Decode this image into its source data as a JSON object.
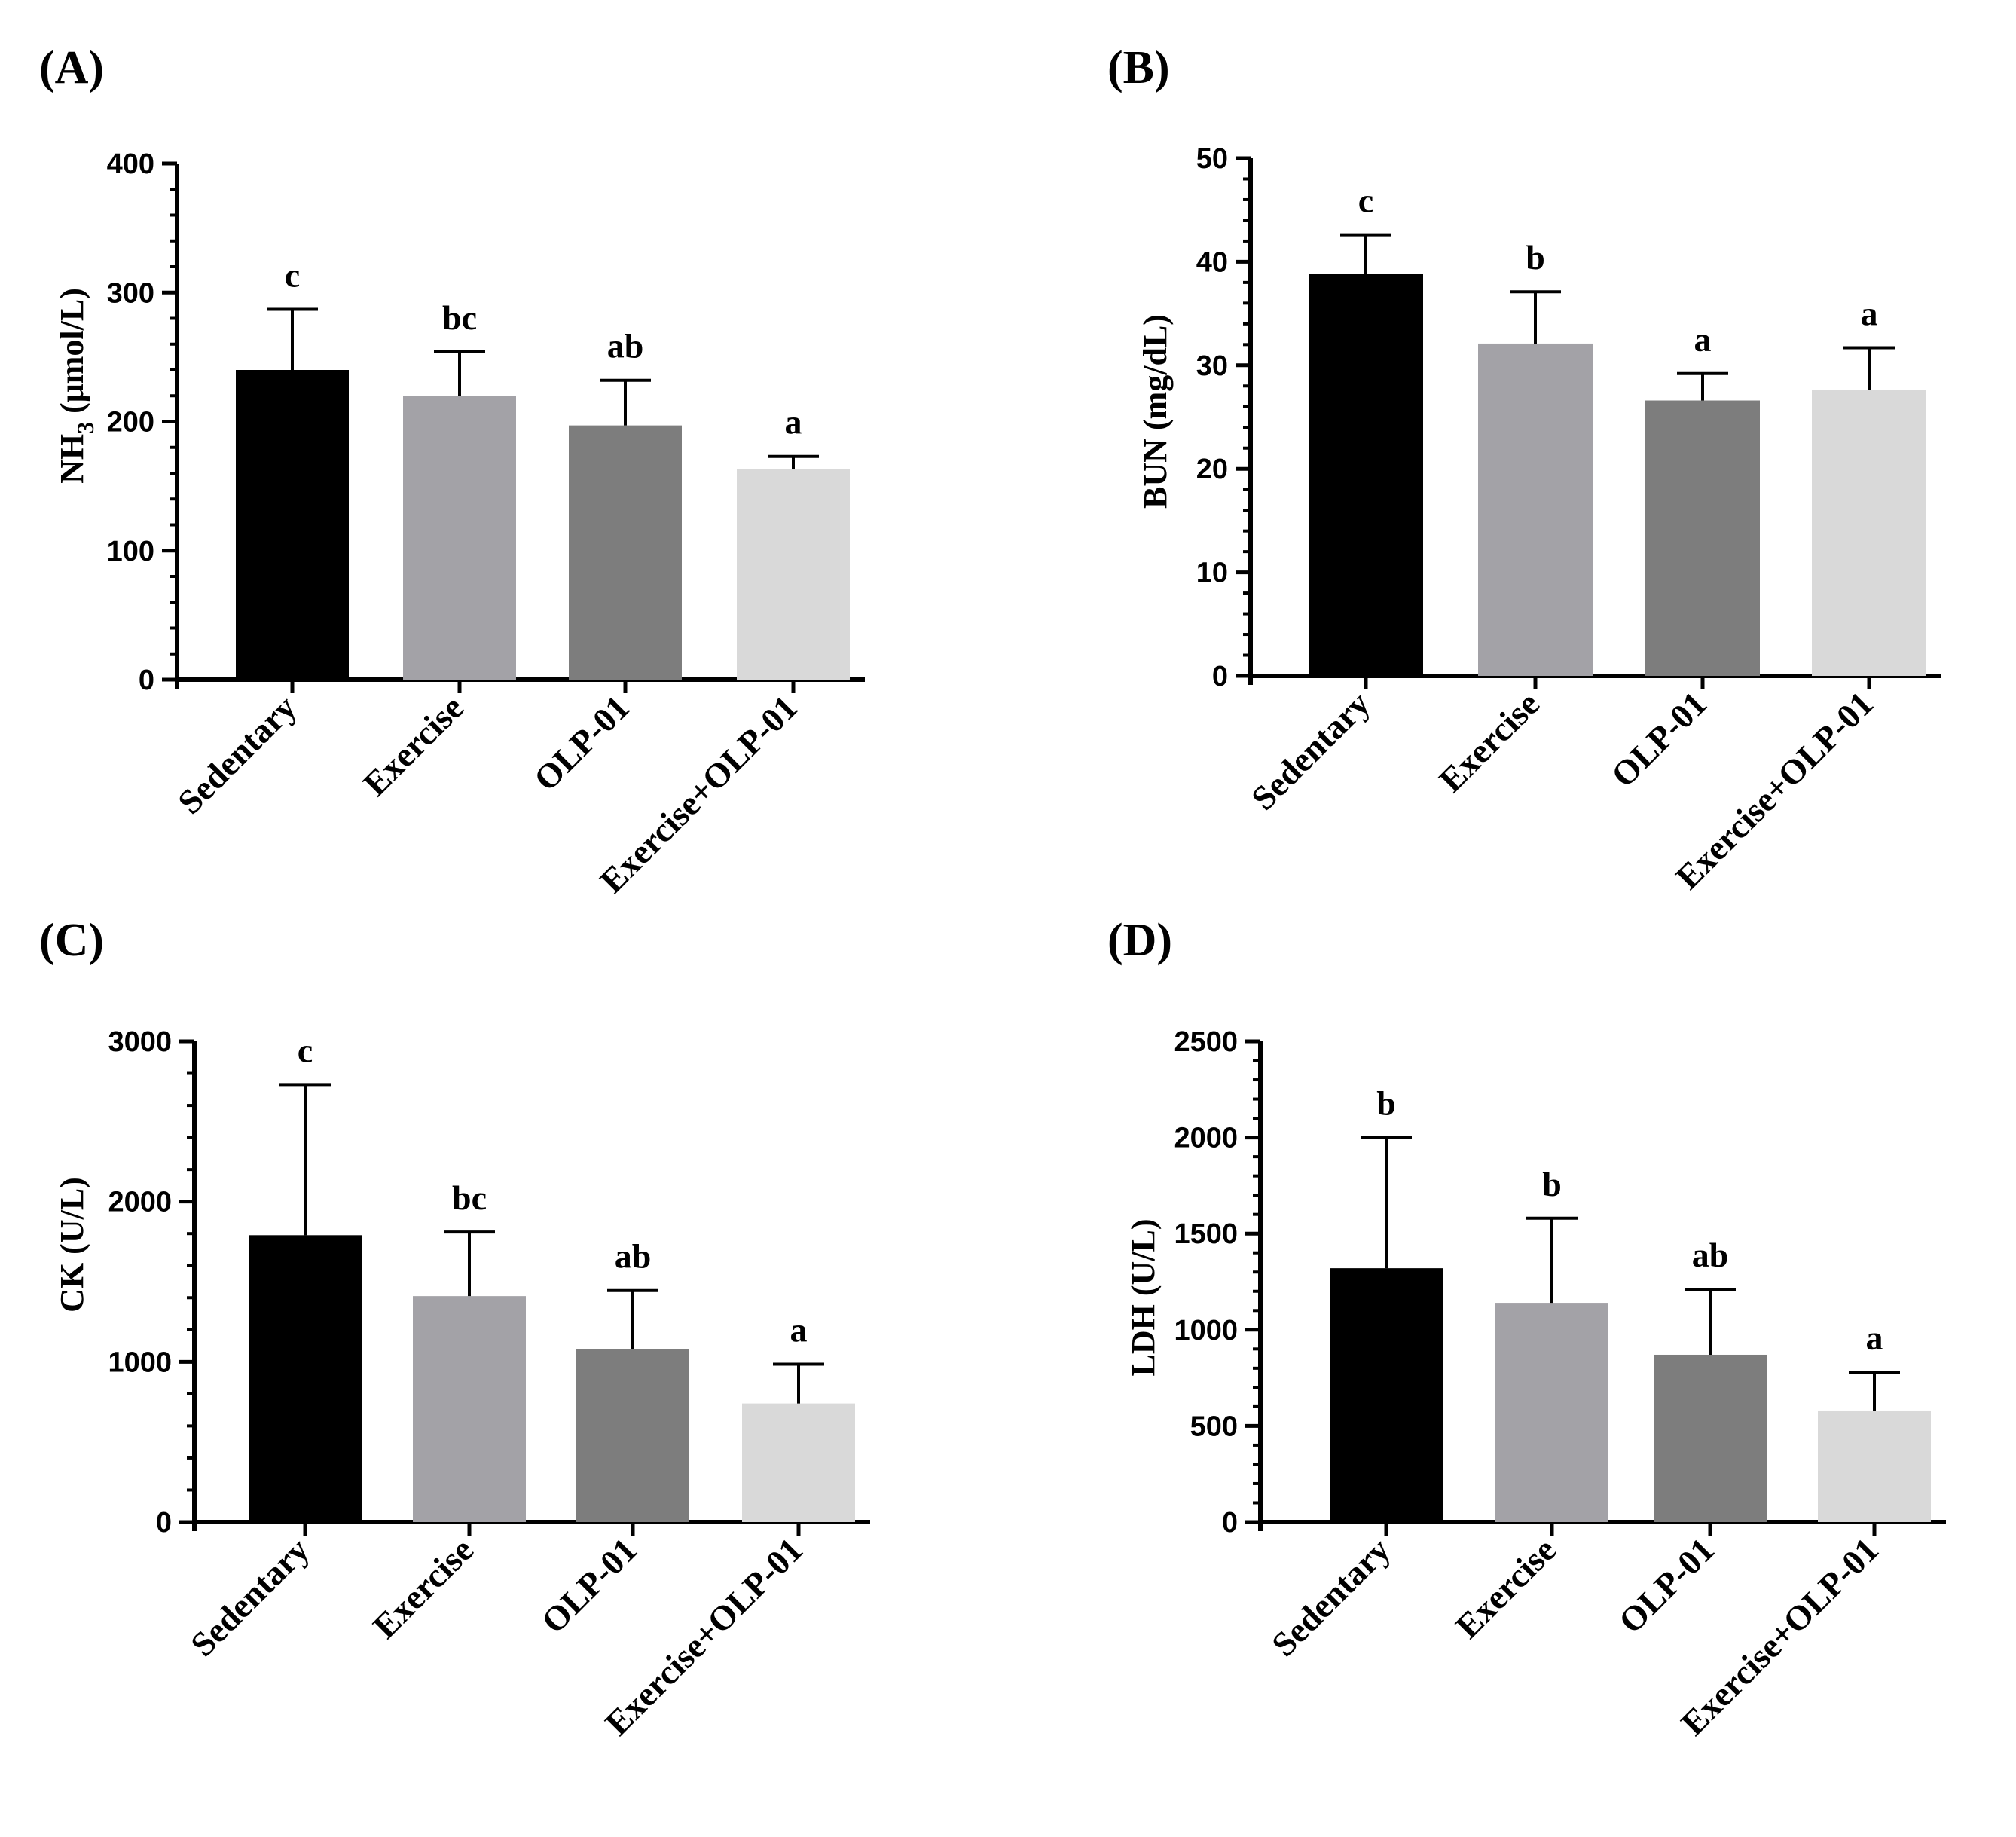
{
  "colors": [
    "#000000",
    "#a3a2a7",
    "#7d7d7d",
    "#d9d9d9"
  ],
  "chart_data": [
    {
      "panel": "(A)",
      "type": "bar",
      "ylabel_main": "NH",
      "ylabel_sub": "3",
      "ylabel_rest": " (μmol/L)",
      "ylim": [
        0,
        400
      ],
      "yticks": [
        0,
        100,
        200,
        300,
        400
      ],
      "yticklabels": [
        "0",
        "100",
        "200",
        "300",
        "400"
      ],
      "minor_step": 20,
      "categories": [
        "Sedentary",
        "Exercise",
        "OLP-01",
        "Exercise+OLP-01"
      ],
      "values": [
        240,
        220,
        197,
        163
      ],
      "errors": [
        47,
        34,
        35,
        10
      ],
      "significance": [
        "c",
        "bc",
        "ab",
        "a"
      ]
    },
    {
      "panel": "(B)",
      "type": "bar",
      "ylabel_main": "BUN (mg/dL)",
      "ylabel_sub": "",
      "ylabel_rest": "",
      "ylim": [
        0,
        50
      ],
      "yticks": [
        0,
        10,
        20,
        30,
        40,
        50
      ],
      "yticklabels": [
        "0",
        "10",
        "20",
        "30",
        "40",
        "50"
      ],
      "minor_step": 2,
      "categories": [
        "Sedentary",
        "Exercise",
        "OLP-01",
        "Exercise+OLP-01"
      ],
      "values": [
        38.8,
        32.1,
        26.6,
        27.6
      ],
      "errors": [
        3.8,
        5.0,
        2.6,
        4.1
      ],
      "significance": [
        "c",
        "b",
        "a",
        "a"
      ]
    },
    {
      "panel": "(C)",
      "type": "bar",
      "ylabel_main": "CK (U/L)",
      "ylabel_sub": "",
      "ylabel_rest": "",
      "ylim": [
        0,
        3000
      ],
      "yticks": [
        0,
        1000,
        2000,
        3000
      ],
      "yticklabels": [
        "0",
        "1000",
        "2000",
        "3000"
      ],
      "minor_step": 200,
      "categories": [
        "Sedentary",
        "Exercise",
        "OLP-01",
        "Exercise+OLP-01"
      ],
      "values": [
        1790,
        1410,
        1080,
        740
      ],
      "errors": [
        940,
        400,
        365,
        245
      ],
      "significance": [
        "c",
        "bc",
        "ab",
        "a"
      ]
    },
    {
      "panel": "(D)",
      "type": "bar",
      "ylabel_main": "LDH (U/L)",
      "ylabel_sub": "",
      "ylabel_rest": "",
      "ylim": [
        0,
        2500
      ],
      "yticks": [
        0,
        500,
        1000,
        1500,
        2000,
        2500
      ],
      "yticklabels": [
        "0",
        "500",
        "1000",
        "1500",
        "2000",
        "2500"
      ],
      "minor_step": 100,
      "categories": [
        "Sedentary",
        "Exercise",
        "OLP-01",
        "Exercise+OLP-01"
      ],
      "values": [
        1320,
        1140,
        870,
        580
      ],
      "errors": [
        680,
        440,
        340,
        200
      ],
      "significance": [
        "b",
        "b",
        "ab",
        "a"
      ]
    }
  ]
}
